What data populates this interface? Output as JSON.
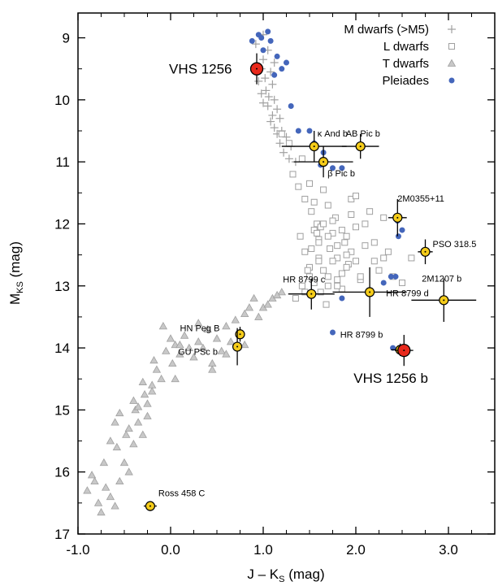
{
  "chart_data": {
    "type": "scatter",
    "title": "",
    "xlabel": "J – K",
    "xlabel_sub": "S",
    "xlabel_unit": " (mag)",
    "ylabel": "M",
    "ylabel_sub": "KS",
    "ylabel_unit": " (mag)",
    "xlim": [
      -1.0,
      3.5
    ],
    "ylim": [
      17,
      8.6
    ],
    "y_inverted": true,
    "xticks": [
      -1.0,
      0.0,
      1.0,
      2.0,
      3.0
    ],
    "xtick_labels": [
      "-1.0",
      "0.0",
      "1.0",
      "2.0",
      "3.0"
    ],
    "yticks": [
      9,
      10,
      11,
      12,
      13,
      14,
      15,
      16,
      17
    ],
    "ytick_labels": [
      "9",
      "10",
      "11",
      "12",
      "13",
      "14",
      "15",
      "16",
      "17"
    ],
    "grid": false,
    "legend_position": "top-right",
    "legend": [
      {
        "label": "M dwarfs (>M5)",
        "marker": "plus",
        "color": "#a0a0a0"
      },
      {
        "label": "L dwarfs",
        "marker": "square",
        "color": "#a0a0a0"
      },
      {
        "label": "T dwarfs",
        "marker": "triangle",
        "color": "#a0a0a0"
      },
      {
        "label": "Pleiades",
        "marker": "dot",
        "color": "#4466bb"
      }
    ],
    "series": [
      {
        "name": "M dwarfs (>M5)",
        "marker": "plus",
        "color": "#a0a0a0",
        "x": [
          1.0,
          0.92,
          1.05,
          1.0,
          0.98,
          1.08,
          1.02,
          0.95,
          1.1,
          1.03,
          0.98,
          1.06,
          1.12,
          1.0,
          1.05,
          1.15,
          1.1,
          1.18,
          1.08,
          1.12,
          1.2,
          1.15,
          1.25,
          1.18,
          1.3,
          1.22,
          1.28,
          1.35,
          1.12
        ],
        "y": [
          8.95,
          9.1,
          9.2,
          9.35,
          9.5,
          9.55,
          9.65,
          9.7,
          9.75,
          9.85,
          9.9,
          9.95,
          10.0,
          10.05,
          10.1,
          10.15,
          10.25,
          10.3,
          10.35,
          10.45,
          10.5,
          10.55,
          10.6,
          10.7,
          10.75,
          10.85,
          10.95,
          11.0,
          9.4
        ]
      },
      {
        "name": "L dwarfs",
        "marker": "square",
        "color": "#a0a0a0",
        "x": [
          1.2,
          1.28,
          1.32,
          1.38,
          1.42,
          1.45,
          1.5,
          1.52,
          1.55,
          1.58,
          1.6,
          1.62,
          1.65,
          1.7,
          1.72,
          1.75,
          1.78,
          1.8,
          1.85,
          1.88,
          1.92,
          1.95,
          2.0,
          2.05,
          2.1,
          2.15,
          2.2,
          2.25,
          2.3,
          2.35,
          2.4,
          2.5,
          2.6,
          1.4,
          1.45,
          1.5,
          1.55,
          1.6,
          1.65,
          1.7,
          1.75,
          1.8,
          1.85,
          1.9,
          1.95,
          2.0,
          2.05,
          1.55,
          1.6,
          1.65,
          1.7,
          1.75,
          1.8,
          1.85,
          1.9,
          1.95,
          1.6,
          1.7,
          1.8,
          1.9,
          2.0,
          2.1,
          2.2,
          2.3,
          1.5,
          1.45,
          1.35,
          1.42,
          1.48,
          1.52,
          1.58,
          1.62,
          1.68
        ],
        "y": [
          10.55,
          10.7,
          11.2,
          11.4,
          10.95,
          11.6,
          11.35,
          11.8,
          11.65,
          12.0,
          12.25,
          12.05,
          11.45,
          11.7,
          12.4,
          12.15,
          11.9,
          12.55,
          12.8,
          12.3,
          12.65,
          11.6,
          12.05,
          12.9,
          12.35,
          11.8,
          12.6,
          12.75,
          12.55,
          12.45,
          12.85,
          12.95,
          12.55,
          12.2,
          12.45,
          12.7,
          12.95,
          12.55,
          12.75,
          13.0,
          12.6,
          12.9,
          13.05,
          12.7,
          12.45,
          12.6,
          12.85,
          12.1,
          12.3,
          12.0,
          12.2,
          11.95,
          12.35,
          12.1,
          12.5,
          11.85,
          12.6,
          12.85,
          13.0,
          12.2,
          11.55,
          12.0,
          12.3,
          11.9,
          12.85,
          13.1,
          13.2,
          13.0,
          12.75,
          12.4,
          12.15,
          13.1,
          13.3
        ]
      },
      {
        "name": "T dwarfs",
        "marker": "triangle",
        "color": "#a0a0a0",
        "x": [
          -0.9,
          -0.85,
          -0.78,
          -0.82,
          -0.7,
          -0.75,
          -0.65,
          -0.6,
          -0.72,
          -0.55,
          -0.5,
          -0.58,
          -0.45,
          -0.4,
          -0.48,
          -0.35,
          -0.3,
          -0.38,
          -0.25,
          -0.2,
          -0.28,
          -0.15,
          -0.1,
          -0.18,
          -0.05,
          0.0,
          -0.08,
          0.05,
          0.1,
          0.02,
          0.15,
          0.2,
          0.25,
          0.3,
          0.4,
          0.5,
          0.6,
          0.7,
          0.8,
          0.9,
          1.0,
          1.1,
          1.2,
          0.35,
          0.45,
          0.55,
          0.65,
          0.75,
          0.85,
          0.95,
          1.05,
          0.45,
          0.6,
          0.8,
          1.15,
          -0.4,
          -0.3,
          -0.55,
          -0.6,
          -0.2,
          -0.25,
          -0.45,
          -0.35,
          -0.65,
          0.1,
          0.05,
          0.3
        ],
        "y": [
          16.3,
          16.05,
          16.5,
          16.15,
          16.25,
          16.65,
          16.4,
          16.55,
          15.85,
          16.15,
          15.85,
          15.6,
          16.0,
          15.55,
          15.4,
          15.2,
          15.4,
          15.0,
          14.9,
          14.6,
          14.75,
          14.35,
          14.5,
          14.2,
          14.05,
          13.85,
          13.65,
          13.95,
          14.1,
          14.25,
          13.8,
          14.0,
          14.15,
          13.9,
          13.7,
          13.85,
          13.65,
          13.55,
          13.45,
          13.2,
          13.35,
          13.2,
          13.1,
          14.0,
          14.25,
          14.05,
          13.9,
          13.75,
          13.35,
          13.5,
          13.3,
          14.35,
          14.1,
          13.95,
          13.15,
          14.85,
          14.55,
          15.05,
          15.2,
          14.7,
          15.1,
          15.3,
          14.95,
          15.5,
          13.95,
          14.5,
          13.6
        ]
      },
      {
        "name": "Pleiades",
        "marker": "dot",
        "color": "#4466bb",
        "x": [
          0.88,
          0.95,
          0.98,
          1.05,
          1.08,
          1.0,
          1.15,
          1.2,
          1.25,
          1.12,
          1.3,
          1.38,
          1.5,
          1.55,
          1.65,
          1.75,
          1.85,
          1.62,
          2.5,
          2.46,
          2.45,
          2.38,
          2.43,
          1.85,
          1.75,
          2.3,
          2.4
        ],
        "y": [
          9.05,
          8.95,
          9.0,
          8.9,
          9.05,
          9.2,
          9.3,
          9.5,
          9.4,
          9.6,
          10.1,
          10.5,
          10.5,
          10.7,
          10.85,
          11.1,
          11.1,
          11.05,
          12.1,
          12.2,
          11.95,
          12.85,
          12.85,
          13.2,
          13.75,
          12.95,
          14.0
        ]
      }
    ],
    "objects": [
      {
        "name": "VHS 1256",
        "x": 0.93,
        "y": 9.5,
        "xerr": 0.05,
        "yerr": 0.25,
        "big": true
      },
      {
        "name": "κ And b",
        "x": 1.55,
        "y": 10.75,
        "xerr": 0.35,
        "yerr": 0.25,
        "big": false
      },
      {
        "name": "AB Pic b",
        "x": 2.05,
        "y": 10.75,
        "xerr": 0.2,
        "yerr": 0.2,
        "big": false
      },
      {
        "name": "β Pic b",
        "x": 1.65,
        "y": 11.0,
        "xerr": 0.32,
        "yerr": 0.25,
        "big": false
      },
      {
        "name": "2M0355+11",
        "x": 2.45,
        "y": 11.9,
        "xerr": 0.1,
        "yerr": 0.3,
        "big": false
      },
      {
        "name": "PSO 318.5",
        "x": 2.75,
        "y": 12.45,
        "xerr": 0.08,
        "yerr": 0.2,
        "big": false
      },
      {
        "name": "HR 8799 c",
        "x": 1.52,
        "y": 13.13,
        "xerr": 0.25,
        "yerr": 0.25,
        "big": false
      },
      {
        "name": "HR 8799 d",
        "x": 2.15,
        "y": 13.1,
        "xerr": 0.4,
        "yerr": 0.4,
        "big": false
      },
      {
        "name": "2M1207 b",
        "x": 2.95,
        "y": 13.23,
        "xerr": 0.35,
        "yerr": 0.35,
        "big": false
      },
      {
        "name": "HN Peg B",
        "x": 0.75,
        "y": 13.78,
        "xerr": 0.05,
        "yerr": 0.12,
        "big": false
      },
      {
        "name": "GU PSc b",
        "x": 0.72,
        "y": 13.98,
        "xerr": 0.05,
        "yerr": 0.3,
        "big": false
      },
      {
        "name": "HR 8799 b",
        "x": 2.48,
        "y": 14.03,
        "xerr": 0.1,
        "yerr": 0.1,
        "big": false
      },
      {
        "name": "VHS 1256 b",
        "x": 2.52,
        "y": 14.04,
        "xerr": 0.1,
        "yerr": 0.25,
        "big": true
      },
      {
        "name": "Ross 458 C",
        "x": -0.22,
        "y": 16.55,
        "xerr": 0.07,
        "yerr": 0.08,
        "big": false
      }
    ]
  }
}
